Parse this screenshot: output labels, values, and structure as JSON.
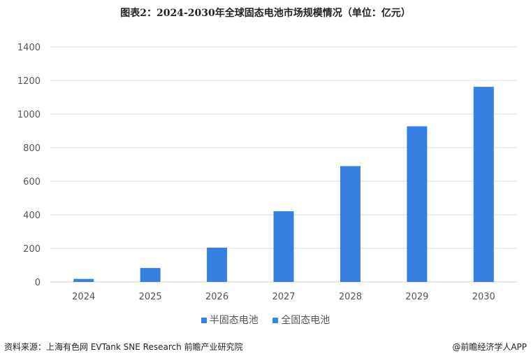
{
  "title": "图表2：2024-2030年全球固态电池市场规模情况（单位：亿元）",
  "chart_data": {
    "type": "bar",
    "stacked": true,
    "categories": [
      "2024",
      "2025",
      "2026",
      "2027",
      "2028",
      "2029",
      "2030"
    ],
    "series": [
      {
        "name": "半固态电池",
        "values": [
          18,
          83,
          204,
          421,
          690,
          927,
          1162
        ],
        "color": "#3580E0"
      },
      {
        "name": "全固态电池",
        "values": [
          null,
          null,
          null,
          null,
          null,
          null,
          null
        ],
        "color": "#3A86E0"
      }
    ],
    "ylim": [
      0,
      1400
    ],
    "yticks": [
      0,
      200,
      400,
      600,
      800,
      1000,
      1200,
      1400
    ],
    "grid": true,
    "legend": "bottom"
  },
  "footer": {
    "source": "资料来源：上海有色网 EVTank SNE Research 前瞻产业研究院",
    "brand": "@前瞻经济学人APP"
  }
}
